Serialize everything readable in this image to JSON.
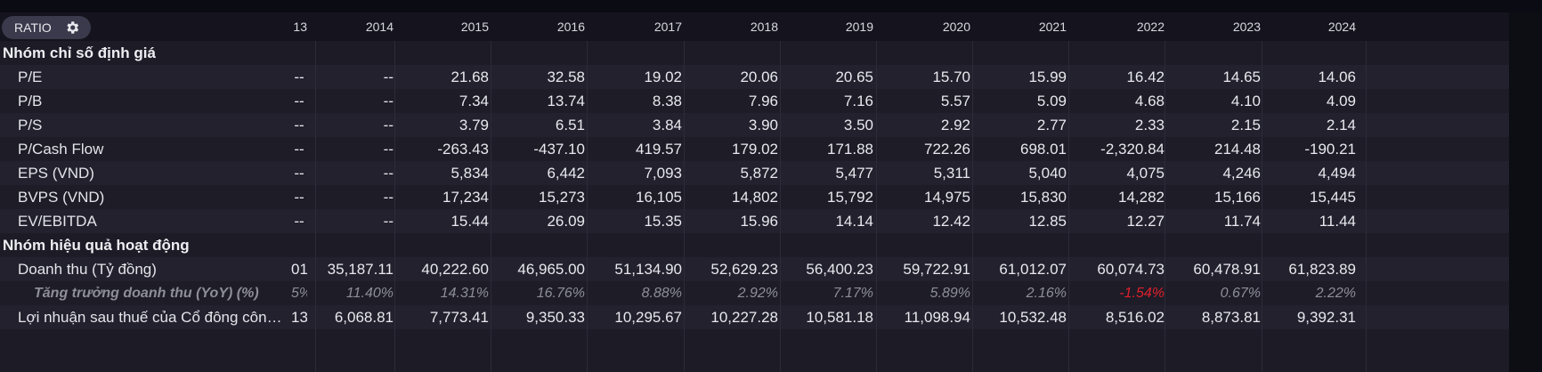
{
  "toolbar": {
    "ratio_label": "RATIO"
  },
  "years": [
    "13",
    "2014",
    "2015",
    "2016",
    "2017",
    "2018",
    "2019",
    "2020",
    "2021",
    "2022",
    "2023",
    "2024"
  ],
  "rows": [
    {
      "type": "section",
      "label": "Nhóm chỉ số định giá",
      "values": []
    },
    {
      "type": "data",
      "label": "P/E",
      "values": [
        "--",
        "--",
        "21.68",
        "32.58",
        "19.02",
        "20.06",
        "20.65",
        "15.70",
        "15.99",
        "16.42",
        "14.65",
        "14.06"
      ]
    },
    {
      "type": "data",
      "label": "P/B",
      "values": [
        "--",
        "--",
        "7.34",
        "13.74",
        "8.38",
        "7.96",
        "7.16",
        "5.57",
        "5.09",
        "4.68",
        "4.10",
        "4.09"
      ]
    },
    {
      "type": "data",
      "label": "P/S",
      "values": [
        "--",
        "--",
        "3.79",
        "6.51",
        "3.84",
        "3.90",
        "3.50",
        "2.92",
        "2.77",
        "2.33",
        "2.15",
        "2.14"
      ]
    },
    {
      "type": "data",
      "label": "P/Cash Flow",
      "values": [
        "--",
        "--",
        "-263.43",
        "-437.10",
        "419.57",
        "179.02",
        "171.88",
        "722.26",
        "698.01",
        "-2,320.84",
        "214.48",
        "-190.21"
      ]
    },
    {
      "type": "data",
      "label": "EPS (VND)",
      "values": [
        "--",
        "--",
        "5,834",
        "6,442",
        "7,093",
        "5,872",
        "5,477",
        "5,311",
        "5,040",
        "4,075",
        "4,246",
        "4,494"
      ]
    },
    {
      "type": "data",
      "label": "BVPS (VND)",
      "values": [
        "--",
        "--",
        "17,234",
        "15,273",
        "16,105",
        "14,802",
        "15,792",
        "14,975",
        "15,830",
        "14,282",
        "15,166",
        "15,445"
      ]
    },
    {
      "type": "data",
      "label": "EV/EBITDA",
      "values": [
        "--",
        "--",
        "15.44",
        "26.09",
        "15.35",
        "15.96",
        "14.14",
        "12.42",
        "12.85",
        "12.27",
        "11.74",
        "11.44"
      ]
    },
    {
      "type": "section",
      "label": "Nhóm hiệu quả hoạt động",
      "values": []
    },
    {
      "type": "data",
      "label": "Doanh thu (Tỷ đồng)",
      "values": [
        "01",
        "35,187.11",
        "40,222.60",
        "46,965.00",
        "51,134.90",
        "52,629.23",
        "56,400.23",
        "59,722.91",
        "61,012.07",
        "60,074.73",
        "60,478.91",
        "61,823.89"
      ]
    },
    {
      "type": "italic",
      "label": "Tăng trưởng doanh thu (YoY) (%)",
      "values": [
        "5%",
        "11.40%",
        "14.31%",
        "16.76%",
        "8.88%",
        "2.92%",
        "7.17%",
        "5.89%",
        "2.16%",
        "-1.54%",
        "0.67%",
        "2.22%"
      ],
      "red_index": 9
    },
    {
      "type": "data",
      "label": "Lợi nhuận sau thuế của Cổ đông công ty mẹ",
      "values": [
        "13",
        "6,068.81",
        "7,773.41",
        "9,350.33",
        "10,295.67",
        "10,227.28",
        "10,581.18",
        "11,098.94",
        "10,532.48",
        "8,516.02",
        "8,873.81",
        "9,392.31"
      ]
    }
  ],
  "colors": {
    "negative_highlight": "#e0202c"
  }
}
